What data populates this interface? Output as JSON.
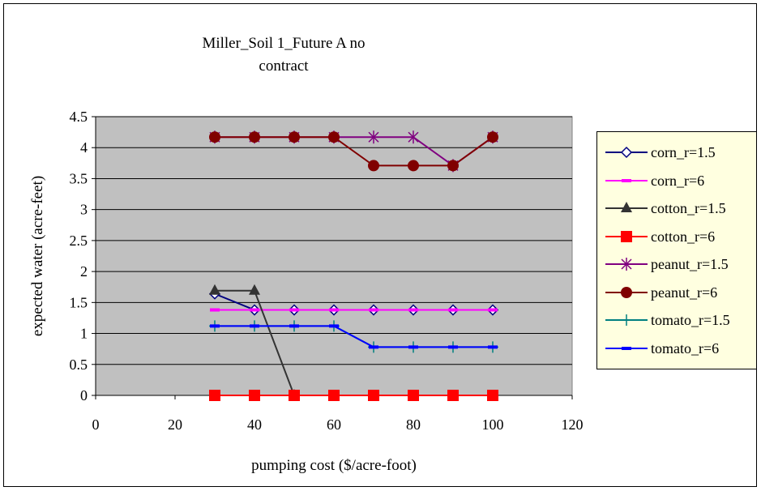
{
  "chart_data": {
    "type": "line",
    "title_line1": "Miller_Soil 1_Future A no",
    "title_line2": "contract",
    "xlabel": "pumping cost ($/acre-foot)",
    "ylabel": "expected water (acre-feet)",
    "xlim": [
      0,
      120
    ],
    "ylim": [
      0,
      4.5
    ],
    "xticks": [
      "0",
      "20",
      "40",
      "60",
      "80",
      "100",
      "120"
    ],
    "yticks": [
      "0",
      "0.5",
      "1",
      "1.5",
      "2",
      "2.5",
      "3",
      "3.5",
      "4",
      "4.5"
    ],
    "grid": "horizontal",
    "plot_background": "#c0c0c0",
    "legend_position": "right",
    "x": [
      30,
      40,
      50,
      60,
      70,
      80,
      90,
      100
    ],
    "series": [
      {
        "name": "corn_r=1.5",
        "color": "#000080",
        "marker": "diamond-open",
        "values": [
          1.64,
          1.38,
          1.38,
          1.38,
          1.38,
          1.38,
          1.38,
          1.38
        ]
      },
      {
        "name": "corn_r=6",
        "color": "#ff00ff",
        "marker": "dash",
        "values": [
          1.38,
          1.38,
          1.38,
          1.38,
          1.38,
          1.38,
          1.38,
          1.38
        ]
      },
      {
        "name": "cotton_r=1.5",
        "color": "#333333",
        "marker": "triangle",
        "values": [
          1.69,
          1.69,
          0,
          null,
          null,
          null,
          null,
          null
        ]
      },
      {
        "name": "cotton_r=6",
        "color": "#ff0000",
        "marker": "square",
        "values": [
          0,
          0,
          0,
          0,
          0,
          0,
          0,
          0
        ]
      },
      {
        "name": "peanut_r=1.5",
        "color": "#800080",
        "marker": "asterisk",
        "values": [
          4.17,
          4.17,
          4.17,
          4.17,
          4.17,
          4.17,
          3.71,
          4.17
        ]
      },
      {
        "name": "peanut_r=6",
        "color": "#800000",
        "marker": "circle",
        "values": [
          4.17,
          4.17,
          4.17,
          4.17,
          3.71,
          3.71,
          3.71,
          4.17
        ]
      },
      {
        "name": "tomato_r=1.5",
        "color": "#008080",
        "marker": "plus",
        "values": [
          1.12,
          1.12,
          1.12,
          1.12,
          0.78,
          0.78,
          0.78,
          0.78
        ]
      },
      {
        "name": "tomato_r=6",
        "color": "#0000ff",
        "marker": "dash",
        "values": [
          1.12,
          1.12,
          1.12,
          1.12,
          0.78,
          0.78,
          0.78,
          0.78
        ]
      }
    ]
  }
}
